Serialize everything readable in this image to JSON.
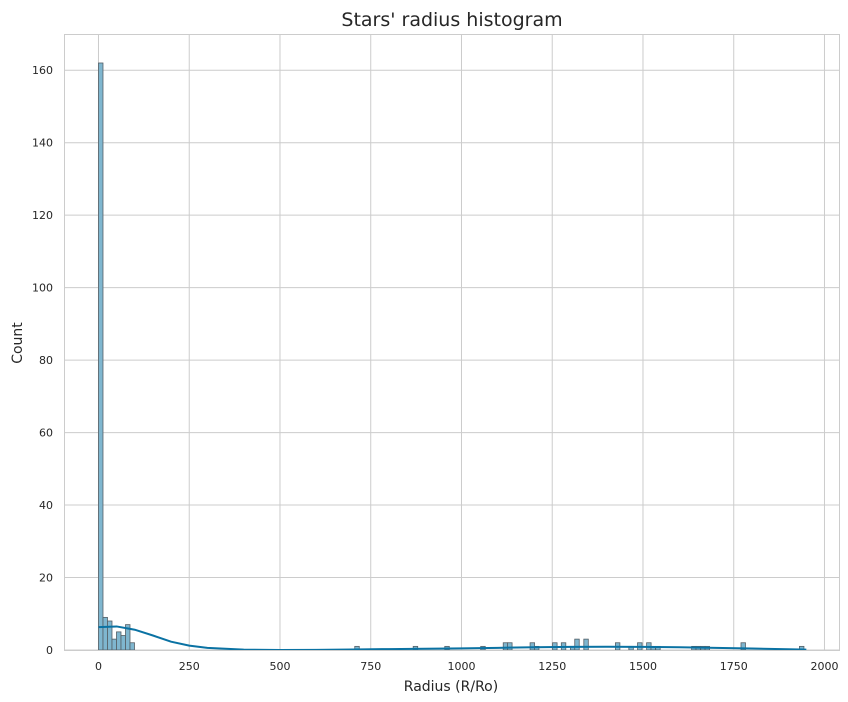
{
  "chart_data": {
    "type": "bar",
    "subtype": "histogram-with-kde",
    "title": "Stars' radius histogram",
    "xlabel": "Radius (R/Ro)",
    "ylabel": "Count",
    "xlim": [
      -95,
      2040
    ],
    "ylim": [
      0,
      170
    ],
    "xticks": [
      0,
      250,
      500,
      750,
      1000,
      1250,
      1500,
      1750,
      2000
    ],
    "yticks": [
      0,
      20,
      40,
      60,
      80,
      100,
      120,
      140,
      160
    ],
    "grid": true,
    "legend": "none",
    "bin_width": 12.4,
    "bins": [
      {
        "x": 0,
        "count": 162
      },
      {
        "x": 12.4,
        "count": 9
      },
      {
        "x": 24.8,
        "count": 8
      },
      {
        "x": 37.2,
        "count": 3
      },
      {
        "x": 49.6,
        "count": 5
      },
      {
        "x": 62,
        "count": 4
      },
      {
        "x": 74.4,
        "count": 7
      },
      {
        "x": 86.8,
        "count": 2
      },
      {
        "x": 706,
        "count": 1
      },
      {
        "x": 867,
        "count": 1
      },
      {
        "x": 954,
        "count": 1
      },
      {
        "x": 1053,
        "count": 1
      },
      {
        "x": 1115,
        "count": 2
      },
      {
        "x": 1127,
        "count": 2
      },
      {
        "x": 1189,
        "count": 2
      },
      {
        "x": 1201,
        "count": 1
      },
      {
        "x": 1251,
        "count": 2
      },
      {
        "x": 1275,
        "count": 2
      },
      {
        "x": 1300,
        "count": 1
      },
      {
        "x": 1312,
        "count": 3
      },
      {
        "x": 1337,
        "count": 3
      },
      {
        "x": 1424,
        "count": 2
      },
      {
        "x": 1461,
        "count": 1
      },
      {
        "x": 1485,
        "count": 2
      },
      {
        "x": 1510,
        "count": 2
      },
      {
        "x": 1522,
        "count": 1
      },
      {
        "x": 1535,
        "count": 1
      },
      {
        "x": 1634,
        "count": 1
      },
      {
        "x": 1646,
        "count": 1
      },
      {
        "x": 1659,
        "count": 1
      },
      {
        "x": 1671,
        "count": 1
      },
      {
        "x": 1770,
        "count": 2
      },
      {
        "x": 1931,
        "count": 1
      }
    ],
    "kde": {
      "x": [
        0,
        50,
        100,
        150,
        200,
        250,
        300,
        400,
        500,
        600,
        700,
        800,
        900,
        1000,
        1100,
        1200,
        1300,
        1400,
        1500,
        1600,
        1700,
        1800,
        1900,
        1950
      ],
      "y": [
        6.3,
        6.5,
        5.6,
        4.0,
        2.3,
        1.2,
        0.6,
        0.1,
        0.0,
        0.05,
        0.15,
        0.25,
        0.35,
        0.45,
        0.6,
        0.75,
        0.85,
        0.9,
        0.85,
        0.75,
        0.6,
        0.4,
        0.2,
        0.1
      ]
    },
    "colors": {
      "bar_fill": "#7fb6cf",
      "bar_edge": "#555f66",
      "kde_line": "#0a72a3",
      "grid": "#cccccc",
      "axes_edge": "#cccccc"
    }
  }
}
